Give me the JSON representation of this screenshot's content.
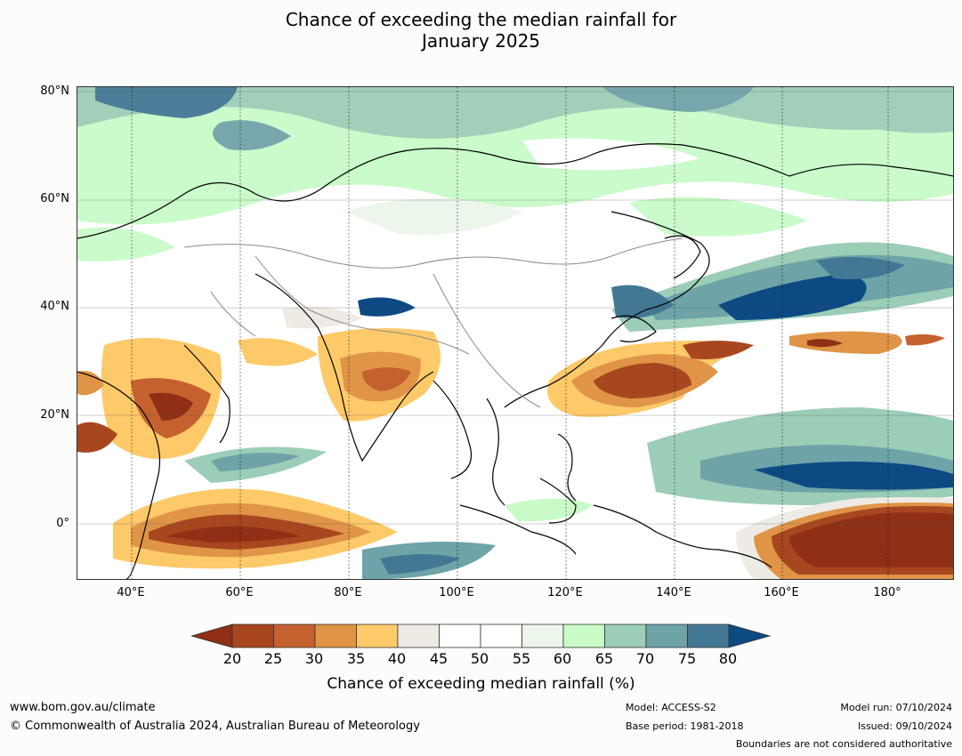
{
  "title_line1": "Chance of exceeding the median rainfall for",
  "title_line2": "January 2025",
  "map": {
    "lat_labels": [
      "80°N",
      "60°N",
      "40°N",
      "20°N",
      "0°"
    ],
    "lon_labels": [
      "40°E",
      "60°E",
      "80°E",
      "100°E",
      "120°E",
      "140°E",
      "160°E",
      "180°"
    ],
    "extent": {
      "lon_min": 30,
      "lon_max": 191,
      "lat_min": -10,
      "lat_max": 81
    },
    "grid": "dotted"
  },
  "colorbar": {
    "title": "Chance of exceeding median rainfall (%)",
    "ticks": [
      "20",
      "25",
      "30",
      "35",
      "40",
      "45",
      "50",
      "55",
      "60",
      "65",
      "70",
      "75",
      "80"
    ],
    "colors": [
      "#8f2f16",
      "#a8471f",
      "#c5612e",
      "#df9447",
      "#fec968",
      "#eeebe4",
      "#ffffff",
      "#ffffff",
      "#ecf6ea",
      "#c8fbc8",
      "#9ccdb7",
      "#6ea3a8",
      "#437895",
      "#0d4a84"
    ]
  },
  "footer": {
    "website": "www.bom.gov.au/climate",
    "copyright": "© Commonwealth of Australia 2024, Australian Bureau of Meteorology",
    "model": "Model: ACCESS-S2",
    "base_period": "Base period: 1981-2018",
    "model_run": "Model run: 07/10/2024",
    "issued": "Issued: 09/10/2024",
    "boundaries": "Boundaries are not considered authoritative"
  }
}
